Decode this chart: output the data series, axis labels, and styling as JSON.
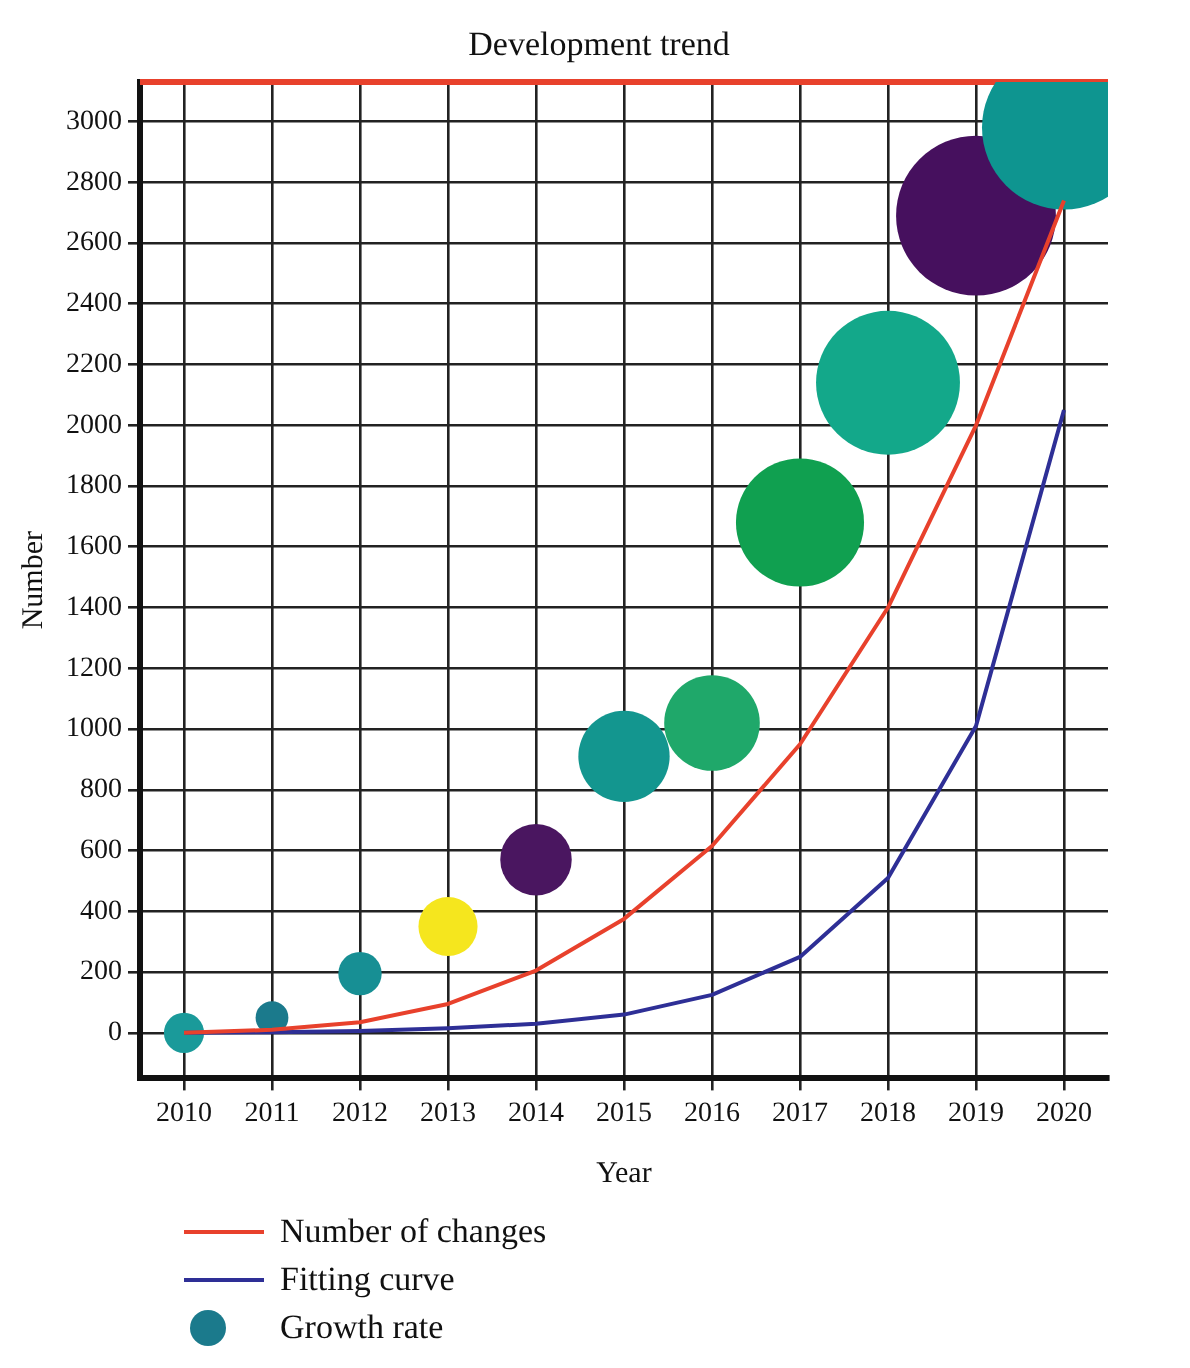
{
  "chart_data": {
    "type": "bubble",
    "title": "Development trend",
    "xlabel": "Year",
    "ylabel": "Number",
    "xlim": [
      2009.5,
      2020.5
    ],
    "xticks": [
      2010,
      2011,
      2012,
      2013,
      2014,
      2015,
      2016,
      2017,
      2018,
      2019,
      2020
    ],
    "ylim": [
      -150,
      3130
    ],
    "yticks": [
      0,
      200,
      400,
      600,
      800,
      1000,
      1200,
      1400,
      1600,
      1800,
      2000,
      2200,
      2400,
      2600,
      2800,
      3000
    ],
    "grid": true,
    "legend": "bottom left",
    "x": [
      2010,
      2011,
      2012,
      2013,
      2014,
      2015,
      2016,
      2017,
      2018,
      2019,
      2020
    ],
    "series": [
      {
        "name": "Number of changes",
        "type": "line",
        "color": "#e8412c",
        "marker": "none",
        "line_style": "solid",
        "values": [
          0,
          10,
          35,
          95,
          205,
          375,
          615,
          950,
          1400,
          2000,
          2740
        ]
      },
      {
        "name": "Fitting curve",
        "type": "line",
        "color": "#2e2f96",
        "marker": "none",
        "line_style": "solid",
        "values": [
          0,
          2,
          6,
          15,
          30,
          60,
          125,
          250,
          510,
          1010,
          2050
        ]
      },
      {
        "name": "Growth rate",
        "type": "bubble",
        "color": "#1b7a8c",
        "values": [
          0,
          50,
          195,
          350,
          570,
          910,
          1020,
          1680,
          2140,
          2690,
          2980
        ],
        "sizes": [
          0.06,
          0.04,
          0.07,
          0.13,
          0.19,
          0.31,
          0.34,
          0.61,
          0.77,
          0.95,
          1
        ],
        "colors": [
          "#1a9a9a",
          "#1b7a8c",
          "#178f94",
          "#f5e61e",
          "#4a1660",
          "#13968f",
          "#1fa86a",
          "#10a050",
          "#13a88a",
          "#46105e",
          "#0e9590"
        ]
      }
    ]
  }
}
